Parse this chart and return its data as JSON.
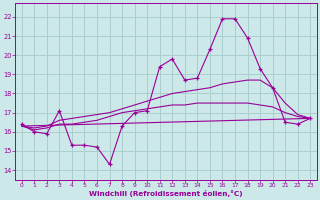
{
  "xlabel": "Windchill (Refroidissement éolien,°C)",
  "bg_color": "#cce8e8",
  "grid_color": "#aacfcf",
  "line_color": "#990099",
  "xlim": [
    -0.5,
    23.5
  ],
  "ylim": [
    13.5,
    22.7
  ],
  "yticks": [
    14,
    15,
    16,
    17,
    18,
    19,
    20,
    21,
    22
  ],
  "xticks": [
    0,
    1,
    2,
    3,
    4,
    5,
    6,
    7,
    8,
    9,
    10,
    11,
    12,
    13,
    14,
    15,
    16,
    17,
    18,
    19,
    20,
    21,
    22,
    23
  ],
  "main_x": [
    0,
    1,
    2,
    3,
    4,
    5,
    6,
    7,
    8,
    9,
    10,
    11,
    12,
    13,
    14,
    15,
    16,
    17,
    18,
    19,
    20,
    21,
    22,
    23
  ],
  "main_y": [
    16.4,
    16.0,
    15.9,
    17.1,
    15.3,
    15.3,
    15.2,
    14.3,
    16.3,
    17.0,
    17.1,
    19.4,
    19.8,
    18.7,
    18.8,
    20.3,
    21.9,
    21.9,
    20.9,
    19.3,
    18.3,
    16.5,
    16.4,
    16.7
  ],
  "trend1_x": [
    0,
    23
  ],
  "trend1_y": [
    16.3,
    16.7
  ],
  "trend2_x": [
    0,
    1,
    2,
    3,
    4,
    5,
    6,
    7,
    8,
    9,
    10,
    11,
    12,
    13,
    14,
    15,
    16,
    17,
    18,
    19,
    20,
    21,
    22,
    23
  ],
  "trend2_y": [
    16.3,
    16.1,
    16.2,
    16.4,
    16.4,
    16.5,
    16.6,
    16.8,
    17.0,
    17.1,
    17.2,
    17.3,
    17.4,
    17.4,
    17.5,
    17.5,
    17.5,
    17.5,
    17.5,
    17.4,
    17.3,
    17.0,
    16.8,
    16.7
  ],
  "trend3_x": [
    0,
    1,
    2,
    3,
    4,
    5,
    6,
    7,
    8,
    9,
    10,
    11,
    12,
    13,
    14,
    15,
    16,
    17,
    18,
    19,
    20,
    21,
    22,
    23
  ],
  "trend3_y": [
    16.3,
    16.2,
    16.3,
    16.6,
    16.7,
    16.8,
    16.9,
    17.0,
    17.2,
    17.4,
    17.6,
    17.8,
    18.0,
    18.1,
    18.2,
    18.3,
    18.5,
    18.6,
    18.7,
    18.7,
    18.3,
    17.5,
    16.9,
    16.7
  ]
}
